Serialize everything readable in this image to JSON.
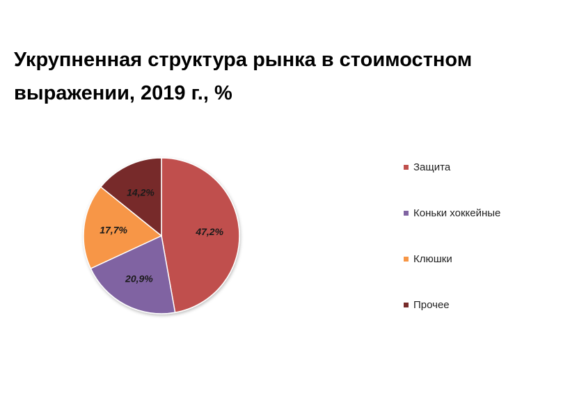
{
  "title": "Укрупненная структура рынка в стоимостном выражении, 2019 г., %",
  "chart_data": {
    "type": "pie",
    "title": "Укрупненная структура рынка в стоимостном выражении, 2019 г., %",
    "legend_position": "right",
    "slices": [
      {
        "name": "Защита",
        "value": 47.2,
        "label": "47,2%",
        "color": "#c0504d"
      },
      {
        "name": "Коньки хоккейные",
        "value": 20.9,
        "label": "20,9%",
        "color": "#8064a2"
      },
      {
        "name": "Клюшки",
        "value": 17.7,
        "label": "17,7%",
        "color": "#f79646"
      },
      {
        "name": "Прочее",
        "value": 14.2,
        "label": "14,2%",
        "color": "#772c2a"
      }
    ]
  }
}
